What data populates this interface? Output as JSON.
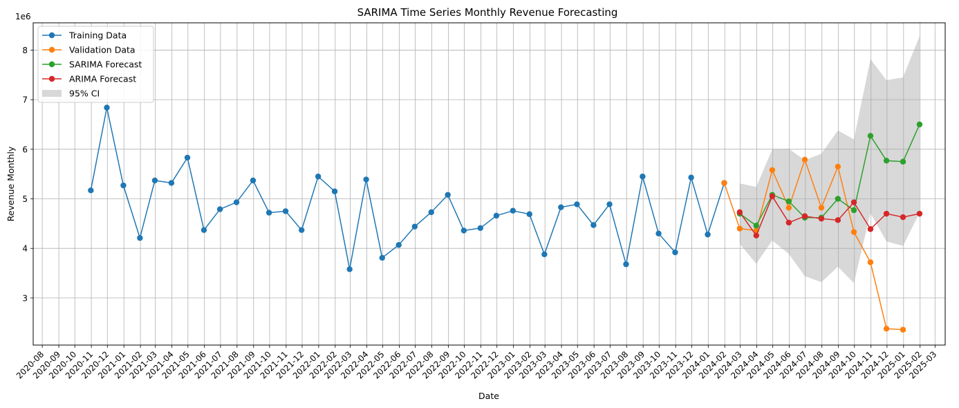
{
  "chart_data": {
    "type": "line",
    "title": "SARIMA Time Series Monthly Revenue Forecasting",
    "xlabel": "Date",
    "ylabel": "Revenue Monthly",
    "y_offset_label": "1e6",
    "x_range": [
      "2020-07-15",
      "2025-03-20"
    ],
    "ylim": [
      2.05,
      8.55
    ],
    "y_ticks": [
      3,
      4,
      5,
      6,
      7,
      8
    ],
    "x_ticks": [
      "2020-08",
      "2020-09",
      "2020-10",
      "2020-11",
      "2020-12",
      "2021-01",
      "2021-02",
      "2021-03",
      "2021-04",
      "2021-05",
      "2021-06",
      "2021-07",
      "2021-08",
      "2021-09",
      "2021-10",
      "2021-11",
      "2021-12",
      "2022-01",
      "2022-02",
      "2022-03",
      "2022-04",
      "2022-05",
      "2022-06",
      "2022-07",
      "2022-08",
      "2022-09",
      "2022-10",
      "2022-11",
      "2022-12",
      "2023-01",
      "2023-02",
      "2023-03",
      "2023-04",
      "2023-05",
      "2023-06",
      "2023-07",
      "2023-08",
      "2023-09",
      "2023-10",
      "2023-11",
      "2023-12",
      "2024-01",
      "2024-02",
      "2024-03",
      "2024-04",
      "2024-05",
      "2024-06",
      "2024-07",
      "2024-08",
      "2024-09",
      "2024-10",
      "2024-11",
      "2024-12",
      "2025-01",
      "2025-02",
      "2025-03"
    ],
    "grid": true,
    "legend_position": "top-left",
    "series": [
      {
        "name": "Training Data",
        "color": "#1f77b4",
        "x": [
          "2020-10-31",
          "2020-11-30",
          "2020-12-31",
          "2021-01-31",
          "2021-02-28",
          "2021-03-31",
          "2021-04-30",
          "2021-05-31",
          "2021-06-30",
          "2021-07-31",
          "2021-08-31",
          "2021-09-30",
          "2021-10-31",
          "2021-11-30",
          "2021-12-31",
          "2022-01-31",
          "2022-02-28",
          "2022-03-31",
          "2022-04-30",
          "2022-05-31",
          "2022-06-30",
          "2022-07-31",
          "2022-08-31",
          "2022-09-30",
          "2022-10-31",
          "2022-11-30",
          "2022-12-31",
          "2023-01-31",
          "2023-02-28",
          "2023-03-31",
          "2023-04-30",
          "2023-05-31",
          "2023-06-30",
          "2023-07-31",
          "2023-08-31",
          "2023-09-30",
          "2023-10-31",
          "2023-11-30",
          "2023-12-31",
          "2024-01-31"
        ],
        "y": [
          5.17,
          6.84,
          5.27,
          4.21,
          5.37,
          5.32,
          5.83,
          4.37,
          4.79,
          4.93,
          5.37,
          4.72,
          4.75,
          4.37,
          5.45,
          5.15,
          3.58,
          5.39,
          3.81,
          4.07,
          4.44,
          4.73,
          5.08,
          4.36,
          4.41,
          4.66,
          4.76,
          4.69,
          3.88,
          4.83,
          4.89,
          4.47,
          4.89,
          3.68,
          5.45,
          4.3,
          3.92,
          5.43,
          4.28,
          5.32
        ]
      },
      {
        "name": "Validation Data",
        "color": "#ff7f0e",
        "x": [
          "2024-01-31",
          "2024-02-29",
          "2024-03-31",
          "2024-04-30",
          "2024-05-31",
          "2024-06-30",
          "2024-07-31",
          "2024-08-31",
          "2024-09-30",
          "2024-10-31",
          "2024-11-30",
          "2024-12-31"
        ],
        "y": [
          5.32,
          4.4,
          4.36,
          5.58,
          4.82,
          5.79,
          4.82,
          5.65,
          4.33,
          3.72,
          2.38,
          2.36
        ]
      },
      {
        "name": "SARIMA Forecast",
        "color": "#2ca02c",
        "x": [
          "2024-02-29",
          "2024-03-31",
          "2024-04-30",
          "2024-05-31",
          "2024-06-30",
          "2024-07-31",
          "2024-08-31",
          "2024-09-30",
          "2024-10-31",
          "2024-11-30",
          "2024-12-31",
          "2025-01-31"
        ],
        "y": [
          4.7,
          4.46,
          5.08,
          4.95,
          4.62,
          4.62,
          5.0,
          4.77,
          6.27,
          5.77,
          5.75,
          6.5
        ]
      },
      {
        "name": "ARIMA Forecast",
        "color": "#d62728",
        "x": [
          "2024-02-29",
          "2024-03-31",
          "2024-04-30",
          "2024-05-31",
          "2024-06-30",
          "2024-07-31",
          "2024-08-31",
          "2024-09-30",
          "2024-10-31",
          "2024-11-30",
          "2024-12-31",
          "2025-01-31"
        ],
        "y": [
          4.73,
          4.26,
          5.05,
          4.52,
          4.65,
          4.6,
          4.57,
          4.93,
          4.39,
          4.7,
          4.63,
          4.7
        ]
      }
    ],
    "confidence_interval": {
      "name": "95% CI",
      "color": "#a9a9a9",
      "x": [
        "2024-02-29",
        "2024-03-31",
        "2024-04-30",
        "2024-05-31",
        "2024-06-30",
        "2024-07-31",
        "2024-08-31",
        "2024-09-30",
        "2024-10-31",
        "2024-11-30",
        "2024-12-31",
        "2025-01-31"
      ],
      "upper": [
        5.31,
        5.24,
        6.0,
        6.01,
        5.78,
        5.91,
        6.38,
        6.2,
        7.82,
        7.39,
        7.45,
        8.28
      ],
      "lower": [
        4.09,
        3.69,
        4.16,
        3.89,
        3.44,
        3.32,
        3.63,
        3.3,
        4.71,
        4.14,
        4.05,
        4.72
      ]
    }
  }
}
